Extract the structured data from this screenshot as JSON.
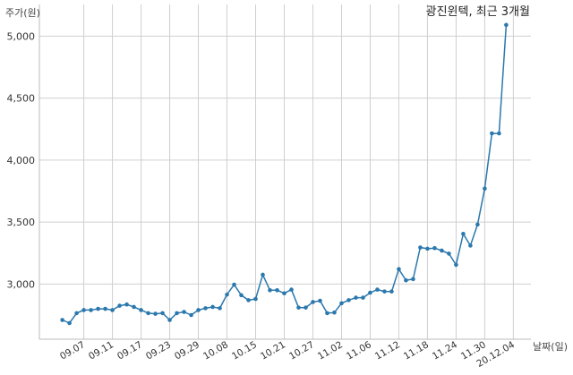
{
  "chart_data": {
    "type": "line",
    "title": "광진윈텍, 최근 3개월",
    "ylabel": "주가(원)",
    "xlabel": "날짜(일)",
    "ylim": [
      2555,
      5255
    ],
    "yticks": [
      3000,
      3500,
      4000,
      4500,
      5000
    ],
    "ytick_labels": [
      "3,000",
      "3,500",
      "4,000",
      "4,500",
      "5,000"
    ],
    "xtick_labels": [
      "09.07",
      "09.11",
      "09.17",
      "09.23",
      "09.29",
      "10.08",
      "10.15",
      "10.21",
      "10.27",
      "11.02",
      "11.06",
      "11.12",
      "11.18",
      "11.24",
      "11.30",
      "20.12.04"
    ],
    "xtick_indices": [
      3,
      7,
      11,
      15,
      19,
      23,
      27,
      31,
      35,
      39,
      43,
      47,
      51,
      55,
      59,
      63
    ],
    "grid": true,
    "line_color": "#2b78ad",
    "series": [
      {
        "name": "",
        "values": [
          2710,
          2685,
          2765,
          2790,
          2790,
          2800,
          2800,
          2790,
          2825,
          2835,
          2815,
          2790,
          2765,
          2760,
          2765,
          2710,
          2765,
          2775,
          2750,
          2790,
          2805,
          2815,
          2805,
          2915,
          2995,
          2910,
          2870,
          2880,
          3075,
          2950,
          2950,
          2925,
          2955,
          2810,
          2810,
          2855,
          2865,
          2765,
          2770,
          2845,
          2870,
          2890,
          2890,
          2930,
          2955,
          2940,
          2940,
          3120,
          3030,
          3040,
          3295,
          3285,
          3290,
          3270,
          3245,
          3155,
          3405,
          3310,
          3480,
          3770,
          4215,
          4215,
          5090
        ]
      }
    ]
  }
}
